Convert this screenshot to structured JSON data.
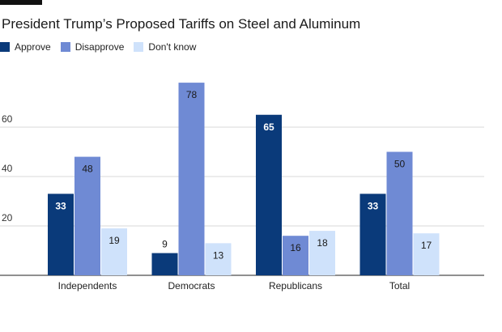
{
  "header": {
    "title": "President Trump’s Proposed Tariffs on Steel and Aluminum"
  },
  "chart_data": {
    "type": "bar",
    "title": "President Trump’s Proposed Tariffs on Steel and Aluminum",
    "xlabel": "",
    "ylabel": "",
    "ylim": [
      0,
      80
    ],
    "yticks": [
      20,
      40,
      60
    ],
    "grid": true,
    "legend_position": "top-left",
    "categories": [
      "Independents",
      "Democrats",
      "Republicans",
      "Total"
    ],
    "series": [
      {
        "name": "Approve",
        "color": "#0a3a7a",
        "label_color": "#ffffff",
        "values": [
          33,
          9,
          65,
          33
        ]
      },
      {
        "name": "Disapprove",
        "color": "#6f8ad4",
        "label_color": "#1a1a1a",
        "values": [
          48,
          78,
          16,
          50
        ]
      },
      {
        "name": "Don't know",
        "color": "#cfe2fb",
        "label_color": "#1a1a1a",
        "values": [
          19,
          13,
          18,
          17
        ]
      }
    ]
  }
}
